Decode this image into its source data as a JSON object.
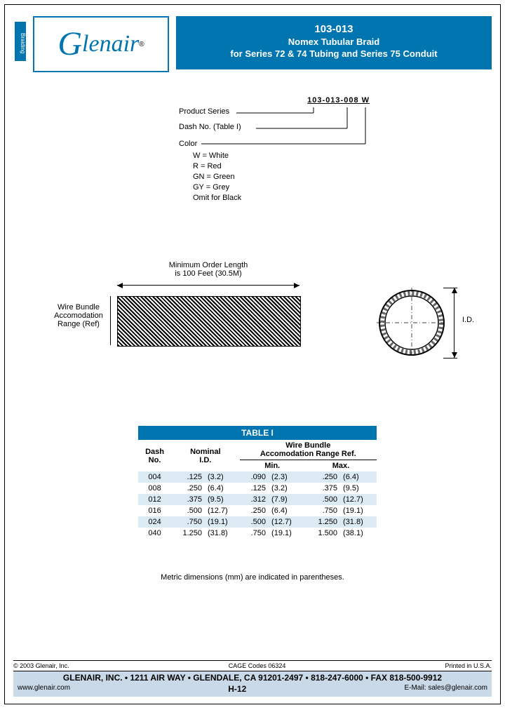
{
  "sidebar_label": "Braiding",
  "logo": {
    "g": "G",
    "rest": "lenair",
    "reg": "®"
  },
  "title": {
    "pn": "103-013",
    "sub1": "Nomex  Tubular Braid",
    "sub2": "for Series 72 & 74 Tubing and Series 75 Conduit"
  },
  "partcode": {
    "code": "103-013-008 W",
    "labels": {
      "series": "Product Series",
      "dash": "Dash No. (Table I)",
      "color": "Color"
    },
    "colors": [
      "W = White",
      "R = Red",
      "GN = Green",
      "GY = Grey",
      "Omit for Black"
    ]
  },
  "drawing": {
    "minorder_l1": "Minimum Order Length",
    "minorder_l2": "is 100 Feet (30.5M)",
    "bundle_l1": "Wire Bundle",
    "bundle_l2": "Accomodation",
    "bundle_l3": "Range (Ref)",
    "id_label": "I.D."
  },
  "table": {
    "title": "TABLE I",
    "hdr_dash": "Dash\nNo.",
    "hdr_nom": "Nominal\nI.D.",
    "hdr_wb": "Wire Bundle\nAccomodation Range Ref.",
    "hdr_min": "Min.",
    "hdr_max": "Max.",
    "rows": [
      {
        "dash": "004",
        "nom": ".125",
        "nomm": "(3.2)",
        "min": ".090",
        "minm": "(2.3)",
        "max": ".250",
        "maxm": "(6.4)"
      },
      {
        "dash": "008",
        "nom": ".250",
        "nomm": "(6.4)",
        "min": ".125",
        "minm": "(3.2)",
        "max": ".375",
        "maxm": "(9.5)"
      },
      {
        "dash": "012",
        "nom": ".375",
        "nomm": "(9.5)",
        "min": ".312",
        "minm": "(7.9)",
        "max": ".500",
        "maxm": "(12.7)"
      },
      {
        "dash": "016",
        "nom": ".500",
        "nomm": "(12.7)",
        "min": ".250",
        "minm": "(6.4)",
        "max": ".750",
        "maxm": "(19.1)"
      },
      {
        "dash": "024",
        "nom": ".750",
        "nomm": "(19.1)",
        "min": ".500",
        "minm": "(12.7)",
        "max": "1.250",
        "maxm": "(31.8)"
      },
      {
        "dash": "040",
        "nom": "1.250",
        "nomm": "(31.8)",
        "min": ".750",
        "minm": "(19.1)",
        "max": "1.500",
        "maxm": "(38.1)"
      }
    ]
  },
  "metric_note": "Metric dimensions (mm) are indicated in parentheses.",
  "footer": {
    "copyright": "© 2003 Glenair, Inc.",
    "cage": "CAGE Codes 06324",
    "printed": "Printed in U.S.A.",
    "line1": "GLENAIR, INC. • 1211 AIR WAY • GLENDALE, CA 91201-2497 • 818-247-6000 • FAX 818-500-9912",
    "www": "www.glenair.com",
    "page": "H-12",
    "email": "E-Mail: sales@glenair.com"
  },
  "colors": {
    "brand": "#0075b0",
    "alt_row": "#dceaf4",
    "footer_bg": "#c9d9e8"
  }
}
